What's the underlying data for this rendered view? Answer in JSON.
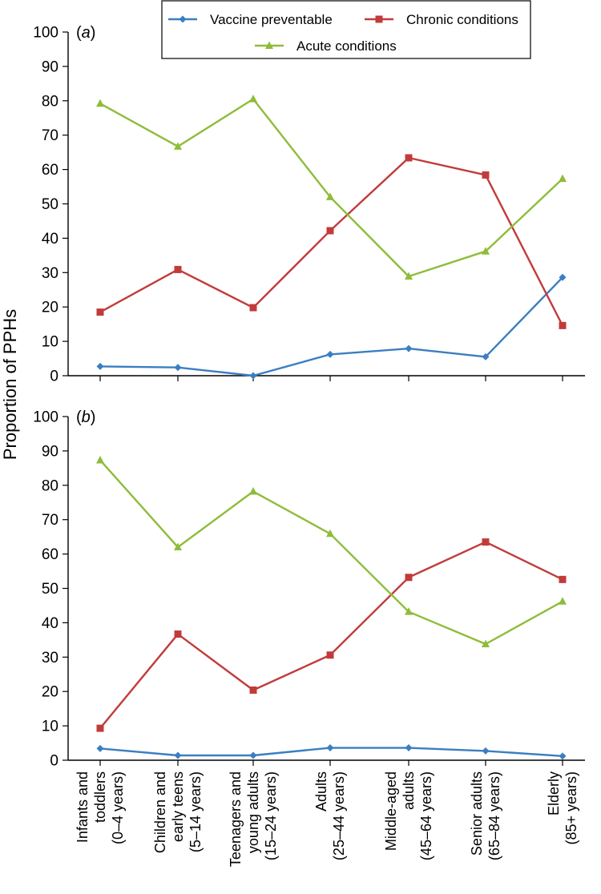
{
  "chart_data": [
    {
      "type": "line",
      "panel_label": "a",
      "ylabel": "Proportion of PPHs",
      "ylim": [
        0,
        100
      ],
      "yticks": [
        0,
        10,
        20,
        30,
        40,
        50,
        60,
        70,
        80,
        90,
        100
      ],
      "categories": [
        [
          "Infants and",
          "toddlers",
          "(0–4 years)"
        ],
        [
          "Children and",
          "early teens",
          "(5–14 years)"
        ],
        [
          "Teenagers and",
          "young adults",
          "(15–24 years)"
        ],
        [
          "Adults",
          "(25–44 years)"
        ],
        [
          "Middle-aged",
          "adults",
          "(45–64 years)"
        ],
        [
          "Senior adults",
          "(65–84 years)"
        ],
        [
          "Elderly",
          "(85+ years)"
        ]
      ],
      "series": [
        {
          "name": "Vaccine preventable",
          "color": "#3b7ec2",
          "marker": "diamond",
          "values": [
            2.7,
            2.4,
            0.0,
            6.2,
            7.9,
            5.5,
            28.6
          ]
        },
        {
          "name": "Chronic conditions",
          "color": "#c23b3b",
          "marker": "square",
          "values": [
            18.5,
            30.9,
            19.8,
            42.2,
            63.4,
            58.4,
            14.6
          ]
        },
        {
          "name": "Acute conditions",
          "color": "#8fbc3a",
          "marker": "triangle",
          "values": [
            79.2,
            66.7,
            80.5,
            52.0,
            28.9,
            36.2,
            57.3
          ]
        }
      ],
      "legend": "top-center"
    },
    {
      "type": "line",
      "panel_label": "b",
      "ylim": [
        0,
        100
      ],
      "yticks": [
        0,
        10,
        20,
        30,
        40,
        50,
        60,
        70,
        80,
        90,
        100
      ],
      "series": [
        {
          "name": "Vaccine preventable",
          "color": "#3b7ec2",
          "marker": "diamond",
          "values": [
            3.4,
            1.4,
            1.4,
            3.6,
            3.6,
            2.7,
            1.2
          ]
        },
        {
          "name": "Chronic conditions",
          "color": "#c23b3b",
          "marker": "square",
          "values": [
            9.3,
            36.7,
            20.4,
            30.6,
            53.2,
            63.5,
            52.6
          ]
        },
        {
          "name": "Acute conditions",
          "color": "#8fbc3a",
          "marker": "triangle",
          "values": [
            87.3,
            62.0,
            78.2,
            65.9,
            43.2,
            33.8,
            46.2
          ]
        }
      ]
    }
  ]
}
